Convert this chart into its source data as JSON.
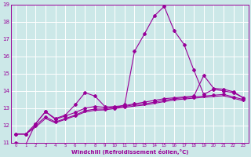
{
  "background_color": "#cce8e8",
  "grid_color": "#ffffff",
  "line_color": "#990099",
  "xlabel": "Windchill (Refroidissement éolien,°C)",
  "ylabel": "",
  "xlim": [
    -0.5,
    23.5
  ],
  "ylim": [
    11,
    19
  ],
  "yticks": [
    11,
    12,
    13,
    14,
    15,
    16,
    17,
    18,
    19
  ],
  "xticks": [
    0,
    1,
    2,
    3,
    4,
    5,
    6,
    7,
    8,
    9,
    10,
    11,
    12,
    13,
    14,
    15,
    16,
    17,
    18,
    19,
    20,
    21,
    22,
    23
  ],
  "series": [
    {
      "x": [
        0,
        1,
        2,
        3,
        4,
        5,
        6,
        7,
        8,
        9,
        10,
        11,
        12,
        13,
        14,
        15,
        16,
        17,
        18,
        19,
        20,
        21,
        22,
        23
      ],
      "y": [
        11.0,
        10.9,
        12.1,
        12.8,
        12.4,
        12.6,
        13.2,
        13.9,
        13.7,
        13.1,
        13.0,
        13.2,
        16.3,
        17.3,
        18.35,
        18.9,
        17.5,
        16.7,
        15.2,
        13.8,
        14.1,
        14.0,
        13.9,
        13.6
      ],
      "marker": "D",
      "markersize": 2.0,
      "linestyle": "-",
      "linewidth": 0.8
    },
    {
      "x": [
        0,
        1,
        2,
        3,
        4,
        5,
        6,
        7,
        8,
        9,
        10,
        11,
        12,
        13,
        14,
        15,
        16,
        17,
        18,
        19,
        20,
        21,
        22,
        23
      ],
      "y": [
        11.5,
        11.5,
        12.1,
        12.8,
        12.35,
        12.55,
        12.75,
        13.0,
        13.1,
        13.05,
        13.1,
        13.15,
        13.25,
        13.35,
        13.45,
        13.55,
        13.6,
        13.65,
        13.7,
        14.9,
        14.15,
        14.1,
        13.95,
        13.6
      ],
      "marker": "D",
      "markersize": 2.0,
      "linestyle": "-",
      "linewidth": 0.8
    },
    {
      "x": [
        0,
        1,
        2,
        3,
        4,
        5,
        6,
        7,
        8,
        9,
        10,
        11,
        12,
        13,
        14,
        15,
        16,
        17,
        18,
        19,
        20,
        21,
        22,
        23
      ],
      "y": [
        11.5,
        11.5,
        12.0,
        12.5,
        12.2,
        12.4,
        12.6,
        12.85,
        12.95,
        12.95,
        13.05,
        13.1,
        13.2,
        13.25,
        13.35,
        13.45,
        13.55,
        13.6,
        13.65,
        13.7,
        13.75,
        13.8,
        13.65,
        13.5
      ],
      "marker": "D",
      "markersize": 2.0,
      "linestyle": "-",
      "linewidth": 0.8
    },
    {
      "x": [
        0,
        1,
        2,
        3,
        4,
        5,
        6,
        7,
        8,
        9,
        10,
        11,
        12,
        13,
        14,
        15,
        16,
        17,
        18,
        19,
        20,
        21,
        22,
        23
      ],
      "y": [
        11.5,
        11.5,
        11.9,
        12.4,
        12.15,
        12.35,
        12.55,
        12.78,
        12.88,
        12.9,
        12.98,
        13.05,
        13.12,
        13.18,
        13.28,
        13.38,
        13.48,
        13.53,
        13.58,
        13.63,
        13.68,
        13.72,
        13.58,
        13.43
      ],
      "marker": null,
      "markersize": 0,
      "linestyle": "-",
      "linewidth": 0.8
    }
  ]
}
